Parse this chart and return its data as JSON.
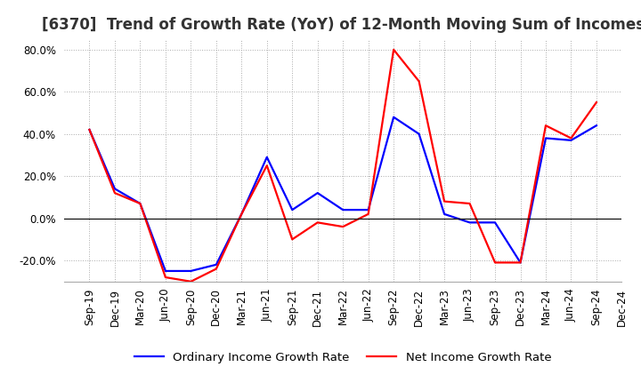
{
  "title": "[6370]  Trend of Growth Rate (YoY) of 12-Month Moving Sum of Incomes",
  "x_labels": [
    "Sep-19",
    "Dec-19",
    "Mar-20",
    "Jun-20",
    "Sep-20",
    "Dec-20",
    "Mar-21",
    "Jun-21",
    "Sep-21",
    "Dec-21",
    "Mar-22",
    "Jun-22",
    "Sep-22",
    "Dec-22",
    "Mar-23",
    "Jun-23",
    "Sep-23",
    "Dec-23",
    "Mar-24",
    "Jun-24",
    "Sep-24",
    "Dec-24"
  ],
  "ordinary_income": [
    0.42,
    0.14,
    0.07,
    -0.25,
    -0.25,
    -0.22,
    0.02,
    0.29,
    0.04,
    0.12,
    0.04,
    0.04,
    0.48,
    0.4,
    0.02,
    -0.02,
    -0.02,
    -0.21,
    0.38,
    0.37,
    0.44,
    null
  ],
  "net_income": [
    0.42,
    0.12,
    0.07,
    -0.28,
    -0.3,
    -0.24,
    0.02,
    0.25,
    -0.1,
    -0.02,
    -0.04,
    0.02,
    0.8,
    0.65,
    0.08,
    0.07,
    -0.21,
    -0.21,
    0.44,
    0.38,
    0.55,
    null
  ],
  "ordinary_color": "#0000ff",
  "net_color": "#ff0000",
  "ylim": [
    -0.3,
    0.85
  ],
  "yticks": [
    -0.2,
    0.0,
    0.2,
    0.4,
    0.6,
    0.8
  ],
  "background_color": "#ffffff",
  "grid_color": "#aaaaaa",
  "legend_ordinary": "Ordinary Income Growth Rate",
  "legend_net": "Net Income Growth Rate",
  "title_fontsize": 12,
  "axis_fontsize": 8.5,
  "legend_fontsize": 9.5,
  "title_color": "#333333"
}
